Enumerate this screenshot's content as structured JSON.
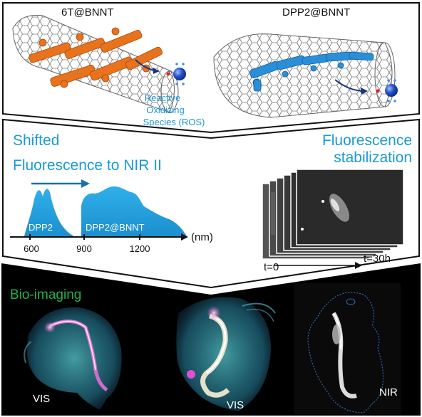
{
  "top_panel": {
    "left_label": "6T@BNNT",
    "right_label": "DPP2@BNNT",
    "ros_label": [
      "Reactive",
      "Oxidizing",
      "Species (ROS)"
    ]
  },
  "middle_panel": {
    "shifted_title": [
      "Shifted",
      "Fluorescence to NIR II"
    ],
    "spectrum_left_label": "DPP2",
    "spectrum_right_label": "DPP2@BNNT",
    "axis_unit": "(nm)",
    "axis_ticks": [
      "600",
      "900",
      "1200"
    ],
    "stabilization_title": [
      "Fluorescence",
      "stabilization"
    ],
    "time_start": "t=0",
    "time_end": "t=30h"
  },
  "bottom_panel": {
    "title": "Bio-imaging",
    "image_labels": [
      "VIS",
      "VIS",
      "NIR"
    ]
  },
  "colors": {
    "accent_blue": "#1a9ad6",
    "title_green": "#22b14c",
    "dye_orange": "#e8731c",
    "dye_blue": "#2a8fd8",
    "ros_sphere": "#1f4fb8",
    "ros_red": "#e02020"
  }
}
